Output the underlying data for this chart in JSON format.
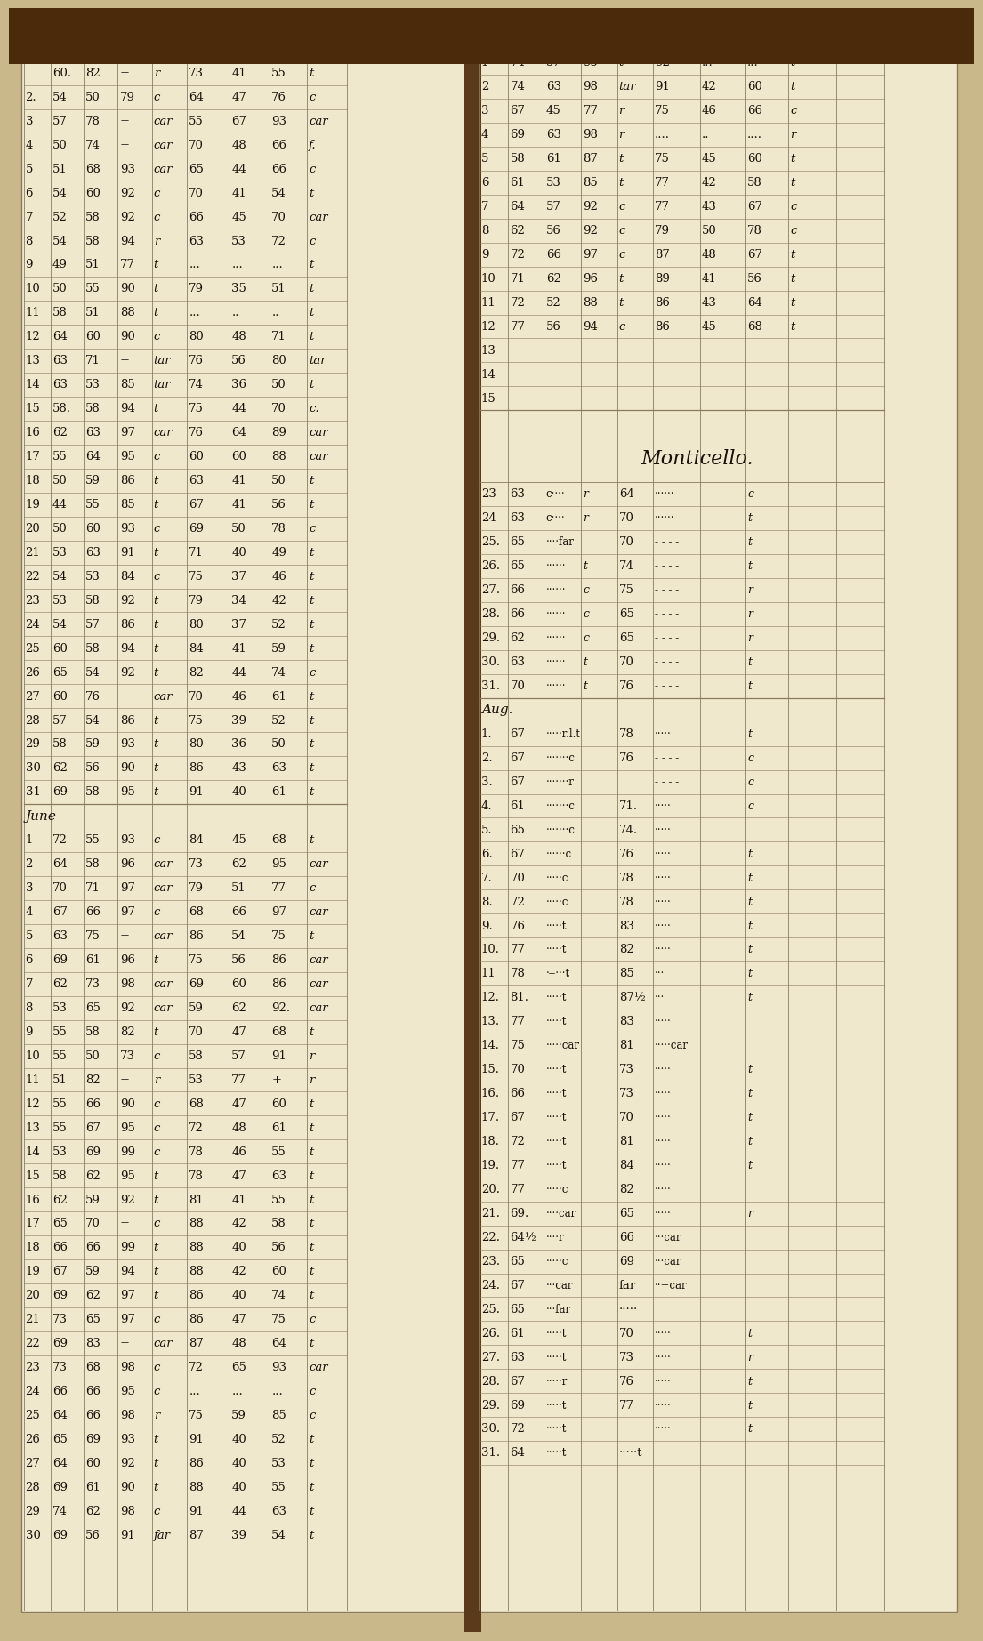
{
  "bg_color": "#c8b88a",
  "page_bg": "#f0e8cc",
  "ink_color": "#1a1008",
  "line_color": "#8a7a60",
  "spine_color": "#5a3a1a",
  "may_rows": [
    [
      "",
      "60.",
      "82",
      "+",
      "r",
      "73",
      "41",
      "55",
      "t"
    ],
    [
      "2.",
      "54",
      "50",
      "79",
      "c",
      "64",
      "47",
      "76",
      "c"
    ],
    [
      "3",
      "57",
      "78",
      "+",
      "car",
      "55",
      "67",
      "93",
      "car"
    ],
    [
      "4",
      "50",
      "74",
      "+",
      "car",
      "70",
      "48",
      "66",
      "f."
    ],
    [
      "5",
      "51",
      "68",
      "93",
      "car",
      "65",
      "44",
      "66",
      "c"
    ],
    [
      "6",
      "54",
      "60",
      "92",
      "c",
      "70",
      "41",
      "54",
      "t"
    ],
    [
      "7",
      "52",
      "58",
      "92",
      "c",
      "66",
      "45",
      "70",
      "car"
    ],
    [
      "8",
      "54",
      "58",
      "94",
      "r",
      "63",
      "53",
      "72",
      "c"
    ],
    [
      "9",
      "49",
      "51",
      "77",
      "t",
      "...",
      "...",
      "...",
      "t"
    ],
    [
      "10",
      "50",
      "55",
      "90",
      "t",
      "79",
      "35",
      "51",
      "t"
    ],
    [
      "11",
      "58",
      "51",
      "88",
      "t",
      "...",
      "..",
      "..",
      "t"
    ],
    [
      "12",
      "64",
      "60",
      "90",
      "c",
      "80",
      "48",
      "71",
      "t"
    ],
    [
      "13",
      "63",
      "71",
      "+",
      "tar",
      "76",
      "56",
      "80",
      "tar"
    ],
    [
      "14",
      "63",
      "53",
      "85",
      "tar",
      "74",
      "36",
      "50",
      "t"
    ],
    [
      "15",
      "58.",
      "58",
      "94",
      "t",
      "75",
      "44",
      "70",
      "c."
    ],
    [
      "16",
      "62",
      "63",
      "97",
      "car",
      "76",
      "64",
      "89",
      "car"
    ],
    [
      "17",
      "55",
      "64",
      "95",
      "c",
      "60",
      "60",
      "88",
      "car"
    ],
    [
      "18",
      "50",
      "59",
      "86",
      "t",
      "63",
      "41",
      "50",
      "t"
    ],
    [
      "19",
      "44",
      "55",
      "85",
      "t",
      "67",
      "41",
      "56",
      "t"
    ],
    [
      "20",
      "50",
      "60",
      "93",
      "c",
      "69",
      "50",
      "78",
      "c"
    ],
    [
      "21",
      "53",
      "63",
      "91",
      "t",
      "71",
      "40",
      "49",
      "t"
    ],
    [
      "22",
      "54",
      "53",
      "84",
      "c",
      "75",
      "37",
      "46",
      "t"
    ],
    [
      "23",
      "53",
      "58",
      "92",
      "t",
      "79",
      "34",
      "42",
      "t"
    ],
    [
      "24",
      "54",
      "57",
      "86",
      "t",
      "80",
      "37",
      "52",
      "t"
    ],
    [
      "25",
      "60",
      "58",
      "94",
      "t",
      "84",
      "41",
      "59",
      "t"
    ],
    [
      "26",
      "65",
      "54",
      "92",
      "t",
      "82",
      "44",
      "74",
      "c"
    ],
    [
      "27",
      "60",
      "76",
      "+",
      "car",
      "70",
      "46",
      "61",
      "t"
    ],
    [
      "28",
      "57",
      "54",
      "86",
      "t",
      "75",
      "39",
      "52",
      "t"
    ],
    [
      "29",
      "58",
      "59",
      "93",
      "t",
      "80",
      "36",
      "50",
      "t"
    ],
    [
      "30",
      "62",
      "56",
      "90",
      "t",
      "86",
      "43",
      "63",
      "t"
    ],
    [
      "31",
      "69",
      "58",
      "95",
      "t",
      "91",
      "40",
      "61",
      "t"
    ]
  ],
  "june_rows": [
    [
      "1",
      "72",
      "55",
      "93",
      "c",
      "84",
      "45",
      "68",
      "t"
    ],
    [
      "2",
      "64",
      "58",
      "96",
      "car",
      "73",
      "62",
      "95",
      "car"
    ],
    [
      "3",
      "70",
      "71",
      "97",
      "car",
      "79",
      "51",
      "77",
      "c"
    ],
    [
      "4",
      "67",
      "66",
      "97",
      "c",
      "68",
      "66",
      "97",
      "car"
    ],
    [
      "5",
      "63",
      "75",
      "+",
      "car",
      "86",
      "54",
      "75",
      "t"
    ],
    [
      "6",
      "69",
      "61",
      "96",
      "t",
      "75",
      "56",
      "86",
      "car"
    ],
    [
      "7",
      "62",
      "73",
      "98",
      "car",
      "69",
      "60",
      "86",
      "car"
    ],
    [
      "8",
      "53",
      "65",
      "92",
      "car",
      "59",
      "62",
      "92.",
      "car"
    ],
    [
      "9",
      "55",
      "58",
      "82",
      "t",
      "70",
      "47",
      "68",
      "t"
    ],
    [
      "10",
      "55",
      "50",
      "73",
      "c",
      "58",
      "57",
      "91",
      "r"
    ],
    [
      "11",
      "51",
      "82",
      "+",
      "r",
      "53",
      "77",
      "+",
      "r"
    ],
    [
      "12",
      "55",
      "66",
      "90",
      "c",
      "68",
      "47",
      "60",
      "t"
    ],
    [
      "13",
      "55",
      "67",
      "95",
      "c",
      "72",
      "48",
      "61",
      "t"
    ],
    [
      "14",
      "53",
      "69",
      "99",
      "c",
      "78",
      "46",
      "55",
      "t"
    ],
    [
      "15",
      "58",
      "62",
      "95",
      "t",
      "78",
      "47",
      "63",
      "t"
    ],
    [
      "16",
      "62",
      "59",
      "92",
      "t",
      "81",
      "41",
      "55",
      "t"
    ],
    [
      "17",
      "65",
      "70",
      "+",
      "c",
      "88",
      "42",
      "58",
      "t"
    ],
    [
      "18",
      "66",
      "66",
      "99",
      "t",
      "88",
      "40",
      "56",
      "t"
    ],
    [
      "19",
      "67",
      "59",
      "94",
      "t",
      "88",
      "42",
      "60",
      "t"
    ],
    [
      "20",
      "69",
      "62",
      "97",
      "t",
      "86",
      "40",
      "74",
      "t"
    ],
    [
      "21",
      "73",
      "65",
      "97",
      "c",
      "86",
      "47",
      "75",
      "c"
    ],
    [
      "22",
      "69",
      "83",
      "+",
      "car",
      "87",
      "48",
      "64",
      "t"
    ],
    [
      "23",
      "73",
      "68",
      "98",
      "c",
      "72",
      "65",
      "93",
      "car"
    ],
    [
      "24",
      "66",
      "66",
      "95",
      "c",
      "...",
      "...",
      "...",
      "c"
    ],
    [
      "25",
      "64",
      "66",
      "98",
      "r",
      "75",
      "59",
      "85",
      "c"
    ],
    [
      "26",
      "65",
      "69",
      "93",
      "t",
      "91",
      "40",
      "52",
      "t"
    ],
    [
      "27",
      "64",
      "60",
      "92",
      "t",
      "86",
      "40",
      "53",
      "t"
    ],
    [
      "28",
      "69",
      "61",
      "90",
      "t",
      "88",
      "40",
      "55",
      "t"
    ],
    [
      "29",
      "74",
      "62",
      "98",
      "c",
      "91",
      "44",
      "63",
      "t"
    ],
    [
      "30",
      "69",
      "56",
      "91",
      "far",
      "87",
      "39",
      "54",
      "t"
    ]
  ],
  "july_top_rows": [
    [
      "1",
      "74",
      "57",
      "95",
      "t",
      "92",
      "...",
      "...",
      "t"
    ],
    [
      "2",
      "74",
      "63",
      "98",
      "tar",
      "91",
      "42",
      "60",
      "t"
    ],
    [
      "3",
      "67",
      "45",
      "77",
      "r",
      "75",
      "46",
      "66",
      "c"
    ],
    [
      "4",
      "69",
      "63",
      "98",
      "r",
      "....",
      "..",
      "....",
      "r"
    ],
    [
      "5",
      "58",
      "61",
      "87",
      "t",
      "75",
      "45",
      "60",
      "t"
    ],
    [
      "6",
      "61",
      "53",
      "85",
      "t",
      "77",
      "42",
      "58",
      "t"
    ],
    [
      "7",
      "64",
      "57",
      "92",
      "c",
      "77",
      "43",
      "67",
      "c"
    ],
    [
      "8",
      "62",
      "56",
      "92",
      "c",
      "79",
      "50",
      "78",
      "c"
    ],
    [
      "9",
      "72",
      "66",
      "97",
      "c",
      "87",
      "48",
      "67",
      "t"
    ],
    [
      "10",
      "71",
      "62",
      "96",
      "t",
      "89",
      "41",
      "56",
      "t"
    ],
    [
      "11",
      "72",
      "52",
      "88",
      "t",
      "86",
      "43",
      "64",
      "t"
    ],
    [
      "12",
      "77",
      "56",
      "94",
      "c",
      "86",
      "45",
      "68",
      "t"
    ],
    [
      "13",
      "",
      "",
      "",
      "",
      "",
      "",
      "",
      ""
    ],
    [
      "14",
      "",
      "",
      "",
      "",
      "",
      "",
      "",
      ""
    ],
    [
      "15",
      "",
      "",
      "",
      "",
      "",
      "",
      "",
      ""
    ]
  ],
  "july_bot_rows": [
    [
      "23",
      "63",
      "c····",
      "r",
      "64",
      "······",
      "c"
    ],
    [
      "24",
      "63",
      "c····",
      "r",
      "70",
      "······",
      "t"
    ],
    [
      "25.",
      "65",
      "····far",
      "",
      "70",
      "- - - -",
      "t"
    ],
    [
      "26.",
      "65",
      "······",
      "t",
      "74",
      "- - - -",
      "t"
    ],
    [
      "27.",
      "66",
      "······",
      "c",
      "75",
      "- - - -",
      "r"
    ],
    [
      "28.",
      "66",
      "······",
      "c",
      "65",
      "- - - -",
      "r"
    ],
    [
      "29.",
      "62",
      "······",
      "c",
      "65",
      "- - - -",
      "r"
    ],
    [
      "30.",
      "63",
      "······",
      "t",
      "70",
      "- - - -",
      "t"
    ],
    [
      "31.",
      "70",
      "······",
      "t",
      "76",
      "- - - -",
      "t"
    ]
  ],
  "aug_rows": [
    [
      "1.",
      "67",
      "·····r.l.t",
      "78",
      "·····",
      "t"
    ],
    [
      "2.",
      "67",
      "·······c",
      "76",
      "- - - -",
      "c"
    ],
    [
      "3.",
      "67",
      "·······r",
      "",
      "- - - -",
      "c"
    ],
    [
      "4.",
      "61",
      "·······c",
      "71.",
      "·····",
      "c"
    ],
    [
      "5.",
      "65",
      "·······c",
      "74.",
      "·····",
      ""
    ],
    [
      "6.",
      "67",
      "······c",
      "76",
      "·····",
      "t"
    ],
    [
      "7.",
      "70",
      "·····c",
      "78",
      "·····",
      "t"
    ],
    [
      "8.",
      "72",
      "·····c",
      "78",
      "·····",
      "t"
    ],
    [
      "9.",
      "76",
      "·····t",
      "83",
      "·····",
      "t"
    ],
    [
      "10.",
      "77",
      "·····t",
      "82",
      "·····",
      "t"
    ],
    [
      "11",
      "78",
      "·‒···t",
      "85",
      "···",
      "t"
    ],
    [
      "12.",
      "81.",
      "·····t",
      "87½",
      "···",
      "t"
    ],
    [
      "13.",
      "77",
      "·····t",
      "83",
      "·····",
      ""
    ],
    [
      "14.",
      "75",
      "·····car",
      "81",
      "·····car",
      ""
    ],
    [
      "15.",
      "70",
      "·····t",
      "73",
      "·····",
      "t"
    ],
    [
      "16.",
      "66",
      "·····t",
      "73",
      "·····",
      "t"
    ],
    [
      "17.",
      "67",
      "·····t",
      "70",
      "·····",
      "t"
    ],
    [
      "18.",
      "72",
      "·····t",
      "81",
      "·····",
      "t"
    ],
    [
      "19.",
      "77",
      "·····t",
      "84",
      "·····",
      "t"
    ],
    [
      "20.",
      "77",
      "·····c",
      "82",
      "·····",
      ""
    ],
    [
      "21.",
      "69.",
      "····car",
      "65",
      "·····",
      "r"
    ],
    [
      "22.",
      "64½",
      "····r",
      "66",
      "···car",
      ""
    ],
    [
      "23.",
      "65",
      "·····c",
      "69",
      "···car",
      ""
    ],
    [
      "24.",
      "67",
      "···car",
      "far",
      "··+car",
      ""
    ],
    [
      "25.",
      "65",
      "···far",
      "·····",
      "",
      ""
    ],
    [
      "26.",
      "61",
      "·····t",
      "70",
      "·····",
      "t"
    ],
    [
      "27.",
      "63",
      "·····t",
      "73",
      "·····",
      "r"
    ],
    [
      "28.",
      "67",
      "·····r",
      "76",
      "·····",
      "t"
    ],
    [
      "29.",
      "69",
      "·····t",
      "77",
      "·····",
      "t"
    ],
    [
      "30.",
      "72",
      "·····t",
      "",
      "·····",
      "t"
    ],
    [
      "31.",
      "64",
      "·····t",
      "·····t",
      "",
      ""
    ]
  ]
}
